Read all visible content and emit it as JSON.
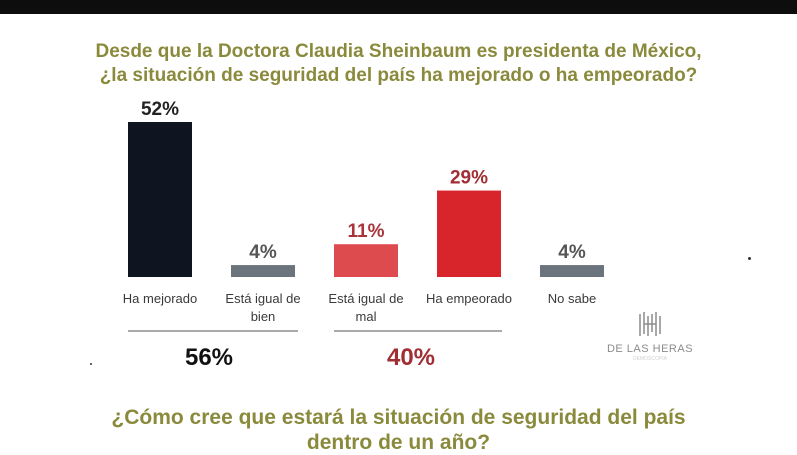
{
  "title_line1": "Desde que la Doctora Claudia Sheinbaum es presidenta de México,",
  "title_line2": "¿la situación de seguridad del país ha mejorado o ha empeorado?",
  "chart_data": {
    "type": "bar",
    "categories": [
      [
        "Ha mejorado"
      ],
      [
        "Está igual de",
        "bien"
      ],
      [
        "Está igual de",
        "mal"
      ],
      [
        "Ha empeorado"
      ],
      [
        "No sabe"
      ]
    ],
    "values": [
      52,
      4,
      11,
      29,
      4
    ],
    "value_labels": [
      "52%",
      "4%",
      "11%",
      "29%",
      "4%"
    ],
    "colors": [
      "#0f1520",
      "#6b737c",
      "#dd4b4f",
      "#d7252b",
      "#6b737c"
    ],
    "label_colors": [
      "#222222",
      "#555555",
      "#a8343a",
      "#a02e33",
      "#555555"
    ],
    "groups": [
      {
        "label": "56%",
        "color": "#111111"
      },
      {
        "label": "40%",
        "color": "#a02e33"
      }
    ]
  },
  "brand": {
    "name": "DE LAS HERAS",
    "sub": "DEMOSCOPIA"
  },
  "next_question_line1": "¿Cómo cree que estará la situación de seguridad del país",
  "next_question_line2": "dentro de un año?"
}
